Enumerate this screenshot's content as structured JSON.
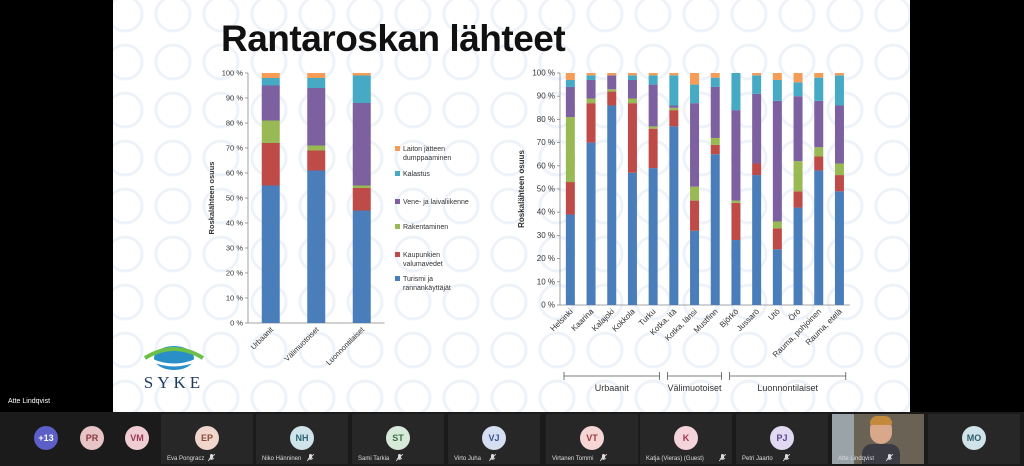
{
  "slide": {
    "title": "Rantaroskan lähteet",
    "logo_text": "SYKE",
    "colors": {
      "turismi": "#4a7ebb",
      "kaupunki": "#be4b48",
      "rakentaminen": "#98b954",
      "vene": "#7d60a0",
      "kalastus": "#46aac5",
      "laiton": "#f59d56"
    }
  },
  "chart_data": [
    {
      "type": "bar",
      "stacked": true,
      "ylabel": "Roskalähteen osuus",
      "ylim": [
        0,
        100
      ],
      "yticks": [
        "0 %",
        "10 %",
        "20 %",
        "30 %",
        "40 %",
        "50 %",
        "60 %",
        "70 %",
        "80 %",
        "90 %",
        "100 %"
      ],
      "categories": [
        "Urbaanit",
        "Välimuotoiset",
        "Luonnontilaiset"
      ],
      "legend": [
        "Laiton jätteen dumppaaminen",
        "Kalastus",
        "Vene- ja laivaliikenne",
        "Rakentaminen",
        "Kaupunkien valumavedet",
        "Turismi ja rannankäyttäjät"
      ],
      "series": [
        {
          "name": "Turismi ja rannankäyttäjät",
          "color_key": "turismi",
          "values": [
            55,
            61,
            45
          ]
        },
        {
          "name": "Kaupunkien valumavedet",
          "color_key": "kaupunki",
          "values": [
            17,
            8,
            9
          ]
        },
        {
          "name": "Rakentaminen",
          "color_key": "rakentaminen",
          "values": [
            9,
            2,
            1
          ]
        },
        {
          "name": "Vene- ja laivaliikenne",
          "color_key": "vene",
          "values": [
            14,
            23,
            33
          ]
        },
        {
          "name": "Kalastus",
          "color_key": "kalastus",
          "values": [
            3,
            4,
            11
          ]
        },
        {
          "name": "Laiton jätteen dumppaaminen",
          "color_key": "laiton",
          "values": [
            2,
            2,
            1
          ]
        }
      ]
    },
    {
      "type": "bar",
      "stacked": true,
      "ylabel": "Roskalähteen osuus",
      "ylim": [
        0,
        100
      ],
      "yticks": [
        "0 %",
        "10 %",
        "20 %",
        "30 %",
        "40 %",
        "50 %",
        "60 %",
        "70 %",
        "80 %",
        "90 %",
        "100 %"
      ],
      "categories": [
        "Helsinki",
        "Kaarina",
        "Kalajoki",
        "Kokkola",
        "Turku",
        "Kotka, itä",
        "Kotka, länsi",
        "Mustfinn",
        "Björkö",
        "Jussarö",
        "Utö",
        "Örö",
        "Rauma, pohjoinen",
        "Rauma, etelä"
      ],
      "groups": [
        {
          "label": "Urbaanit",
          "from": 0,
          "to": 4
        },
        {
          "label": "Välimuotoiset",
          "from": 5,
          "to": 7
        },
        {
          "label": "Luonnontilaiset",
          "from": 8,
          "to": 13
        }
      ],
      "series": [
        {
          "name": "Turismi ja rannankäyttäjät",
          "color_key": "turismi",
          "values": [
            39,
            70,
            86,
            57,
            59,
            77,
            32,
            65,
            28,
            56,
            24,
            42,
            58,
            49
          ]
        },
        {
          "name": "Kaupunkien valumavedet",
          "color_key": "kaupunki",
          "values": [
            14,
            17,
            6,
            30,
            17,
            7,
            13,
            4,
            16,
            5,
            9,
            7,
            6,
            7
          ]
        },
        {
          "name": "Rakentaminen",
          "color_key": "rakentaminen",
          "values": [
            28,
            2,
            1,
            2,
            1,
            1,
            6,
            3,
            1,
            0,
            3,
            13,
            4,
            5
          ]
        },
        {
          "name": "Vene- ja laivaliikenne",
          "color_key": "vene",
          "values": [
            13,
            8,
            6,
            8,
            18,
            1,
            36,
            22,
            39,
            30,
            52,
            28,
            20,
            25
          ]
        },
        {
          "name": "Kalastus",
          "color_key": "kalastus",
          "values": [
            3,
            2,
            0,
            2,
            4,
            13,
            8,
            4,
            16,
            8,
            9,
            6,
            10,
            13
          ]
        },
        {
          "name": "Laiton jätteen dumppaaminen",
          "color_key": "laiton",
          "values": [
            3,
            1,
            1,
            1,
            1,
            1,
            5,
            2,
            0,
            1,
            3,
            4,
            2,
            1
          ]
        }
      ]
    }
  ],
  "meeting": {
    "active_speaker": "Atte Lindqvist",
    "participants": [
      {
        "initials": "+13",
        "name": "",
        "color": "#5b5fc7",
        "text": "#ffffff"
      },
      {
        "initials": "PR",
        "name": "",
        "color": "#e8c4c6",
        "text": "#8a3a42"
      },
      {
        "initials": "VM",
        "name": "",
        "color": "#f0cdd3",
        "text": "#9a3a55"
      },
      {
        "initials": "EP",
        "name": "Eva Pongracz",
        "color": "#f1d6cd",
        "text": "#8a4a3a"
      },
      {
        "initials": "NH",
        "name": "Niko Hänninen",
        "color": "#cfe3ea",
        "text": "#2f6676"
      },
      {
        "initials": "ST",
        "name": "Sami Tarkia",
        "color": "#d7ead9",
        "text": "#3b6e45"
      },
      {
        "initials": "VJ",
        "name": "Virto Juha",
        "color": "#d6def2",
        "text": "#39528e"
      },
      {
        "initials": "VT",
        "name": "Virtanen Tommi",
        "color": "#f6d5d5",
        "text": "#9a3c3c"
      },
      {
        "initials": "K",
        "name": "Katja (Vieras) (Guest)",
        "color": "#f4d3da",
        "text": "#a03552"
      },
      {
        "initials": "PJ",
        "name": "Petri Jaarto",
        "color": "#e1d9f1",
        "text": "#5a478e"
      },
      {
        "initials": "",
        "name": "Atte Lindqvist",
        "color": "#3a3a3a",
        "text": "#ffffff"
      },
      {
        "initials": "MO",
        "name": "",
        "color": "#cfe3e8",
        "text": "#2f5e6b"
      }
    ]
  }
}
